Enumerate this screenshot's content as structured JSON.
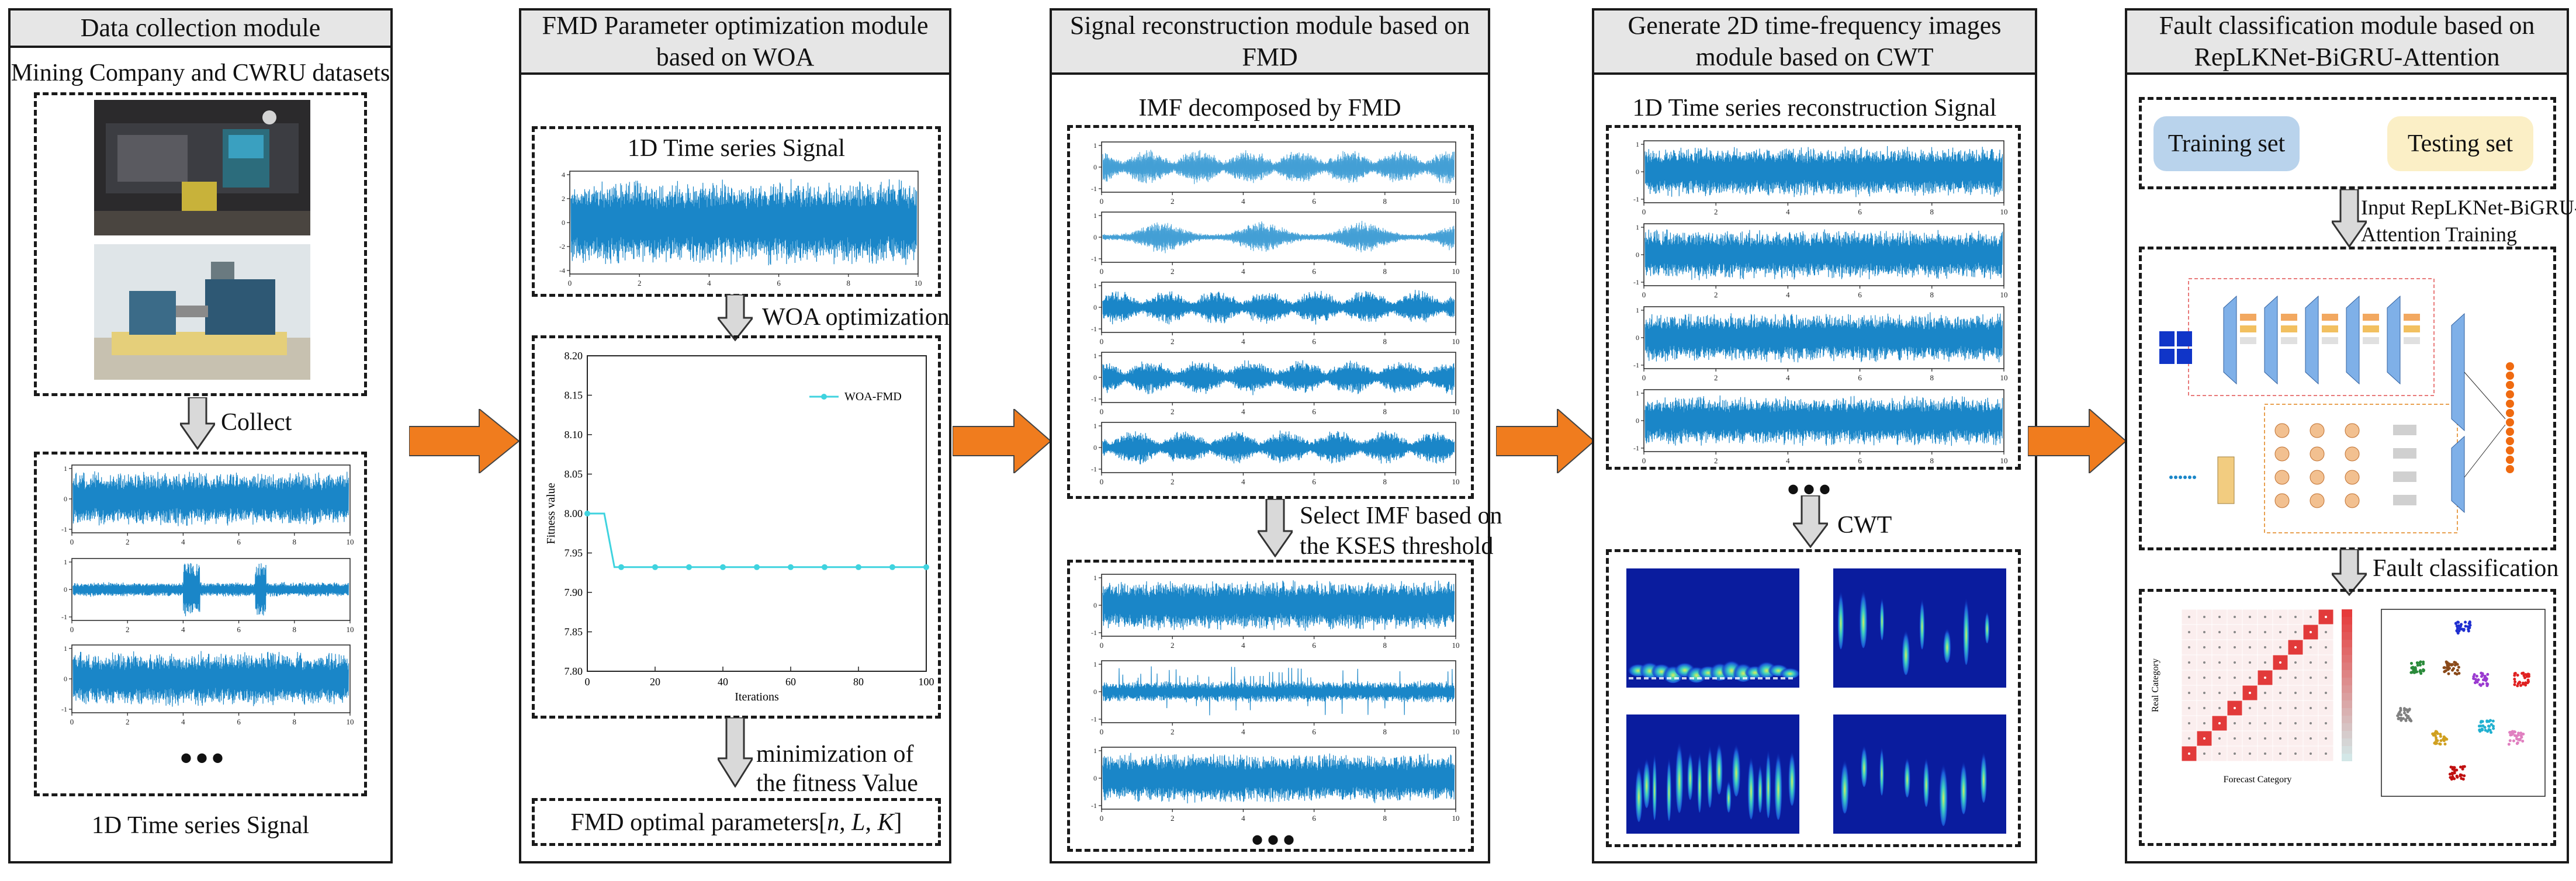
{
  "modules": {
    "m1": {
      "title": "Data collection module",
      "subtitle": "Mining Company and CWRU datasets",
      "collect_label": "Collect",
      "bottom_label": "1D Time series Signal",
      "dots": "•••"
    },
    "m2": {
      "title_line1": "FMD Parameter optimization module",
      "title_line2": "based on WOA",
      "signal_label": "1D Time series Signal",
      "woa_label": "WOA optimization",
      "min_label_line1": "minimization of",
      "min_label_line2": "the fitness Value",
      "optimal_prefix": "FMD optimal parameters[",
      "optimal_params": "n, L, K",
      "optimal_suffix": "]"
    },
    "m3": {
      "title_line1": "Signal reconstruction module based on",
      "title_line2": "FMD",
      "imf_label": "IMF decomposed by FMD",
      "select_line1": "Select IMF based on",
      "select_line2": "the KSES threshold",
      "dots": "•••"
    },
    "m4": {
      "title_line1": "Generate 2D time-frequency images",
      "title_line2": "module based on CWT",
      "recon_label": "1D Time series reconstruction Signal",
      "cwt_label": "CWT",
      "dots": "•••"
    },
    "m5": {
      "title_line1": "Fault classification module based on",
      "title_line2": "RepLKNet-BiGRU-Attention",
      "training_set": "Training set",
      "testing_set": "Testing set",
      "input_line1": "Input RepLKNet-BiGRU-",
      "input_line2": "Attention Training",
      "fault_label": "Fault classification",
      "confusion_ylabel": "Real Category",
      "confusion_xlabel": "Forecast Category"
    }
  },
  "signal_axes": {
    "x_ticks": [
      "0",
      "2",
      "4",
      "6",
      "8",
      "10"
    ]
  },
  "chart_data": {
    "type": "line",
    "title": "",
    "xlabel": "Iterations",
    "ylabel": "Fitness value",
    "xlim": [
      0,
      100
    ],
    "ylim": [
      7.8,
      8.2
    ],
    "x_ticks": [
      "0",
      "20",
      "40",
      "60",
      "80",
      "100"
    ],
    "y_ticks": [
      "7.80",
      "7.85",
      "7.90",
      "7.95",
      "8.00",
      "8.05",
      "8.10",
      "8.15",
      "8.20"
    ],
    "legend": "WOA-FMD",
    "series": [
      {
        "name": "WOA-FMD",
        "x": [
          0,
          5,
          8,
          10,
          20,
          30,
          40,
          50,
          60,
          70,
          80,
          90,
          100
        ],
        "y": [
          8.0,
          8.0,
          7.932,
          7.932,
          7.932,
          7.932,
          7.932,
          7.932,
          7.932,
          7.932,
          7.932,
          7.932,
          7.932
        ]
      }
    ]
  },
  "colors": {
    "signal": "#1a86c8",
    "arrow": "#f07c1e",
    "curve": "#3fd3df",
    "training_bg": "#b9d3ec",
    "testing_bg": "#fbefc6"
  }
}
